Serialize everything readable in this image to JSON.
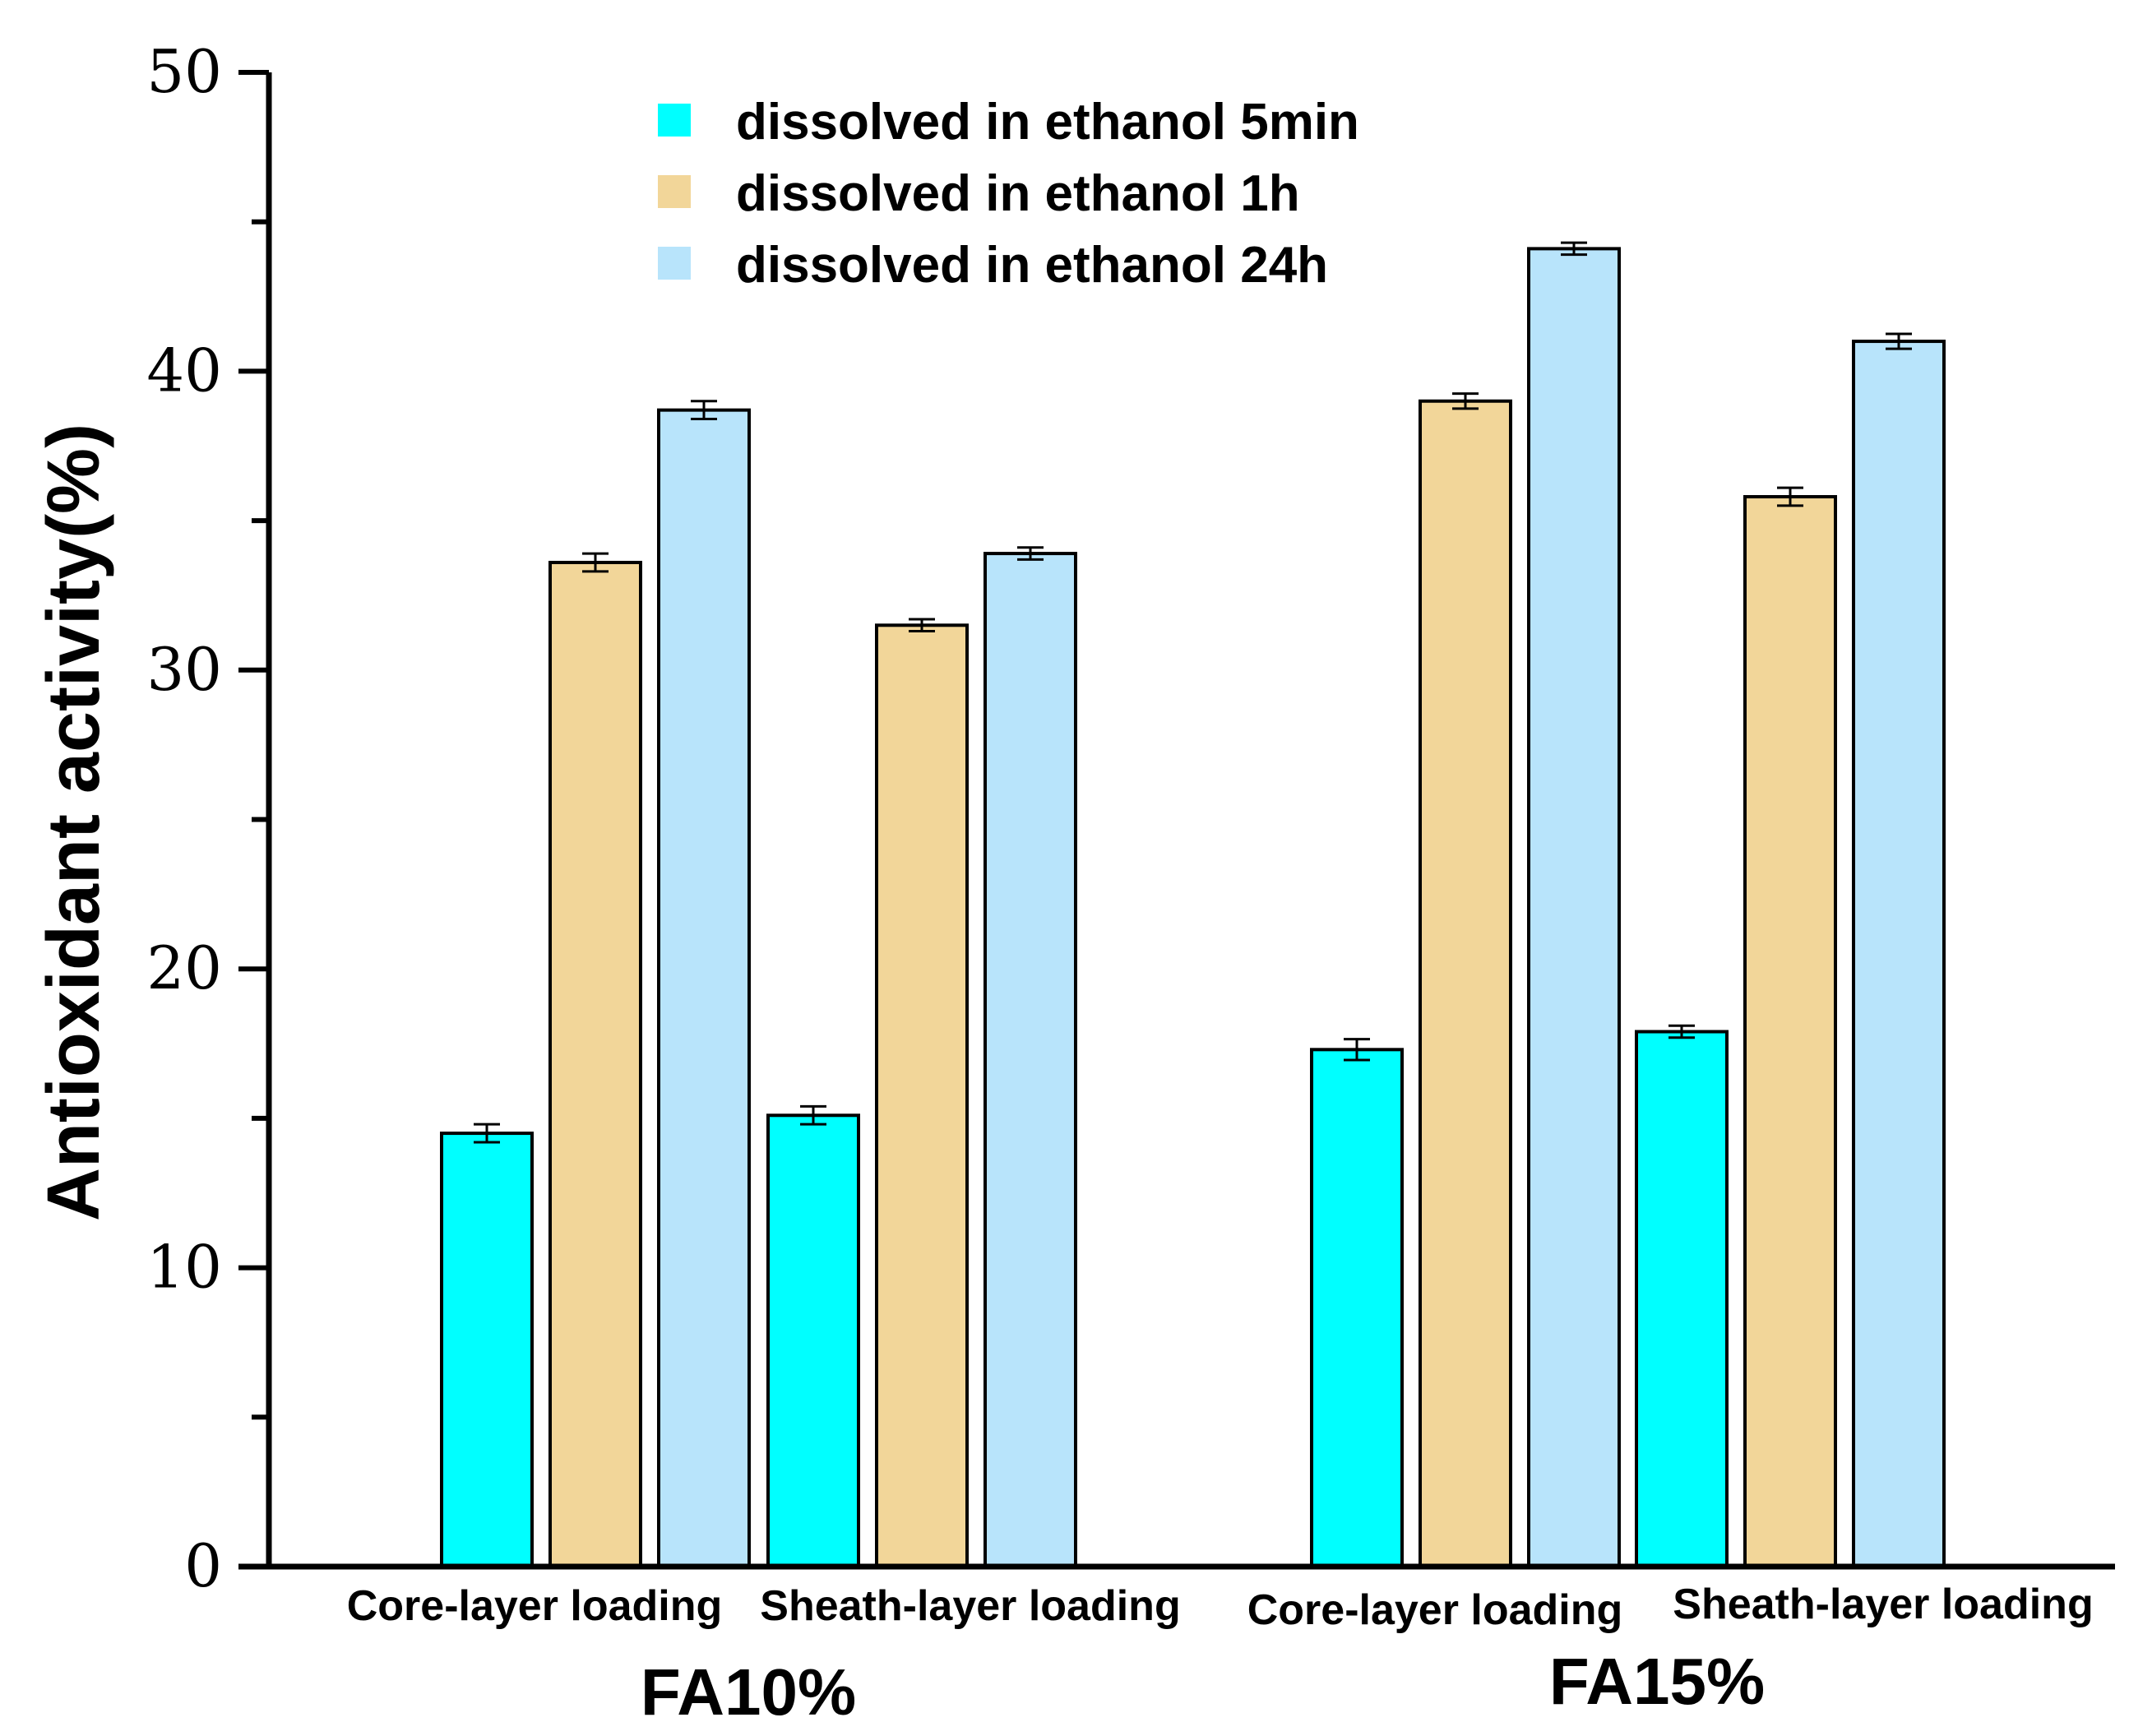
{
  "chart_data": {
    "type": "bar",
    "ylabel": "Antioxidant activity(%)",
    "ylim": [
      0,
      50
    ],
    "yticks": [
      0,
      10,
      20,
      30,
      40,
      50
    ],
    "yticks_minor": [
      5,
      15,
      25,
      35,
      45
    ],
    "grid": false,
    "legend_position": "top-center",
    "groups": [
      {
        "label": "FA10%",
        "categories": [
          "Core-layer loading",
          "Sheath-layer loading"
        ]
      },
      {
        "label": "FA15%",
        "categories": [
          "Core-layer loading",
          "Sheath-layer loading"
        ]
      }
    ],
    "series": [
      {
        "name": "dissolved in ethanol 5min",
        "color": "#00ffff",
        "values": [
          14.5,
          15.1,
          17.3,
          17.9
        ],
        "errors": [
          0.3,
          0.3,
          0.35,
          0.2
        ]
      },
      {
        "name": "dissolved in ethanol 1h",
        "color": "#f2d699",
        "values": [
          33.6,
          31.5,
          39.0,
          35.8
        ],
        "errors": [
          0.3,
          0.2,
          0.25,
          0.3
        ]
      },
      {
        "name": "dissolved in ethanol 24h",
        "color": "#b8e4fb",
        "values": [
          38.7,
          33.9,
          44.1,
          41.0
        ],
        "errors": [
          0.3,
          0.2,
          0.2,
          0.25
        ]
      }
    ]
  }
}
